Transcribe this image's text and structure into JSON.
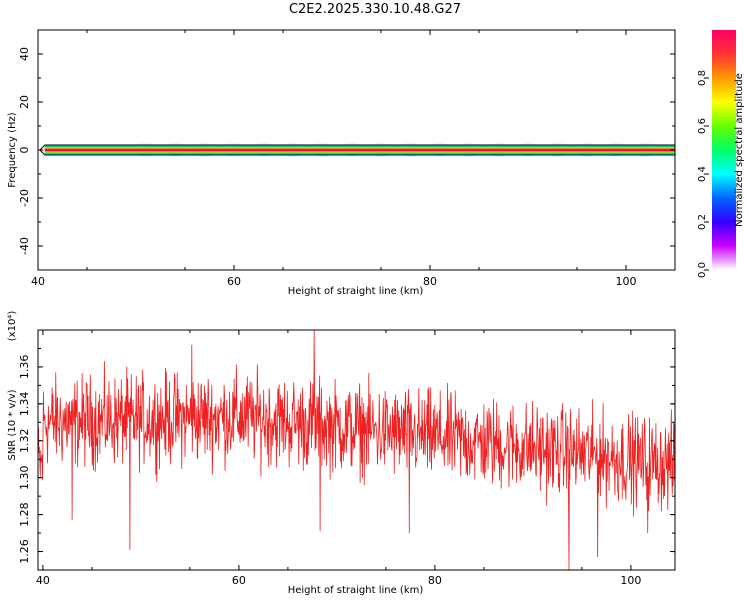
{
  "title": "C2E2.2025.330.10.48.G27",
  "chart_data": [
    {
      "type": "heatmap",
      "xlabel": "Height of straight line (km)",
      "ylabel": "Frequency (Hz)",
      "xlim": [
        40,
        105
      ],
      "ylim": [
        -50,
        50
      ],
      "xticks": [
        40,
        60,
        80,
        100
      ],
      "yticks": [
        40,
        20,
        0,
        -20,
        -40
      ],
      "band": {
        "y": 0,
        "x_start": 40.7,
        "x_end": 105
      },
      "blobs": [
        51,
        54,
        57,
        60,
        63,
        66,
        69,
        72,
        75,
        78,
        81,
        84,
        87,
        90,
        93,
        96,
        99,
        102
      ],
      "colorbar": {
        "label": "Normalized spectral amplitude",
        "ticks": [
          0.8,
          0.6,
          0.4,
          0.2,
          0.0
        ],
        "colors": [
          "#ff0066",
          "#ff3333",
          "#ff9900",
          "#ffff00",
          "#66ff00",
          "#00ff66",
          "#00ffff",
          "#0066ff",
          "#3300ff",
          "#cc00ff",
          "#ffffff"
        ]
      }
    },
    {
      "type": "line",
      "xlabel": "Height of straight line (km)",
      "ylabel": "SNR (10 * v/v)",
      "yexponent_label": "(x10⁴)",
      "xlim": [
        39.5,
        104.5
      ],
      "ylim": [
        1.25,
        1.38
      ],
      "xticks": [
        40,
        60,
        80,
        100
      ],
      "yticks": [
        1.36,
        1.34,
        1.32,
        1.3,
        1.28,
        1.26
      ],
      "color": "#ee2222",
      "trend": {
        "x": [
          40,
          60,
          80,
          104.5
        ],
        "y": [
          1.33,
          1.333,
          1.322,
          1.307
        ]
      },
      "noise_amplitude": 0.012,
      "spikes": [
        {
          "x": 43.0,
          "y": 1.277
        },
        {
          "x": 48.9,
          "y": 1.261
        },
        {
          "x": 55.2,
          "y": 1.372
        },
        {
          "x": 67.7,
          "y": 1.38
        },
        {
          "x": 68.3,
          "y": 1.271
        },
        {
          "x": 77.4,
          "y": 1.27
        },
        {
          "x": 93.7,
          "y": 1.25
        },
        {
          "x": 96.6,
          "y": 1.257
        },
        {
          "x": 101.7,
          "y": 1.27
        }
      ]
    }
  ]
}
